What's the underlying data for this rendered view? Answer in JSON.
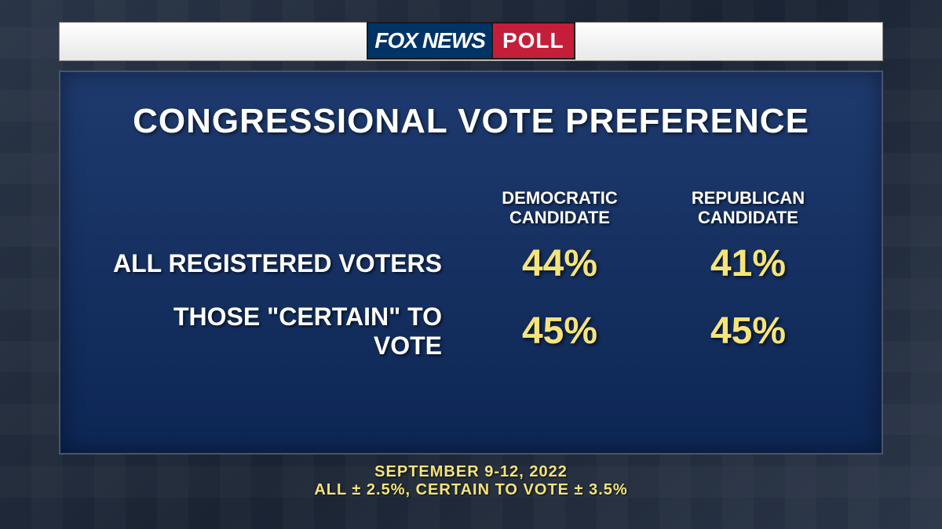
{
  "logo": {
    "fox": "FOX",
    "news": "NEWS",
    "poll": "POLL"
  },
  "title": "CONGRESSIONAL VOTE PREFERENCE",
  "columns": [
    {
      "line1": "DEMOCRATIC",
      "line2": "CANDIDATE"
    },
    {
      "line1": "REPUBLICAN",
      "line2": "CANDIDATE"
    }
  ],
  "rows": [
    {
      "label": "ALL REGISTERED VOTERS",
      "values": [
        "44%",
        "41%"
      ]
    },
    {
      "label": "THOSE \"CERTAIN\" TO VOTE",
      "values": [
        "45%",
        "45%"
      ]
    }
  ],
  "footer": {
    "line1": "SEPTEMBER 9-12, 2022",
    "line2": "ALL ± 2.5%, CERTAIN TO VOTE ± 3.5%"
  },
  "styling": {
    "type": "table",
    "title_fontsize": 44,
    "title_color": "#ffffff",
    "column_header_fontsize": 22,
    "column_header_color": "#ffffff",
    "row_label_fontsize": 32,
    "row_label_color": "#ffffff",
    "value_fontsize": 48,
    "value_color": "#f5e47a",
    "footer_fontsize": 20,
    "footer_color": "#f5e47a",
    "panel_bg_top": "#1e3a6e",
    "panel_bg_bottom": "#0d2654",
    "page_bg": "#1a2332",
    "topbar_bg": "#f0f0f0",
    "fox_logo_bg": "#003366",
    "poll_logo_bg": "#c41e3a",
    "font_family": "Arial Black"
  }
}
